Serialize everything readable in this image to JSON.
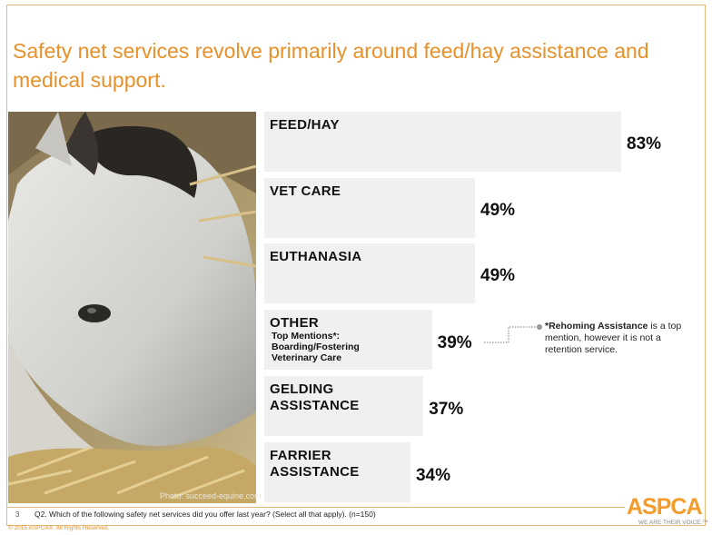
{
  "slide": {
    "title": "Safety net services revolve primarily around feed/hay assistance and medical support.",
    "photo_credit": "Photo: succeed-equine.com",
    "page_number": "3",
    "question": "Q2. Which of the following safety net services did you offer last year? (Select all that apply). (n=150)",
    "copyright": "© 2015 ASPCA®. All Rights Reserved.",
    "logo_text": "ASPCA",
    "logo_tagline": "WE ARE THEIR VOICE.™"
  },
  "colors": {
    "accent": "#e8912a",
    "bar": "#f0f0f0",
    "text": "#111111"
  },
  "chart_data": {
    "type": "bar",
    "orientation": "horizontal",
    "categories": [
      "FEED/HAY",
      "VET CARE",
      "EUTHANASIA",
      "OTHER",
      "GELDING ASSISTANCE",
      "FARRIER ASSISTANCE"
    ],
    "values": [
      83,
      49,
      49,
      39,
      37,
      34
    ],
    "value_labels": [
      "83%",
      "49%",
      "49%",
      "39%",
      "37%",
      "34%"
    ],
    "label_lines": [
      [
        "FEED/HAY"
      ],
      [
        "VET CARE"
      ],
      [
        "EUTHANASIA"
      ],
      [
        "OTHER"
      ],
      [
        "GELDING",
        "ASSISTANCE"
      ],
      [
        "FARRIER",
        "ASSISTANCE"
      ]
    ],
    "sublabels": [
      [],
      [],
      [],
      [
        "Top Mentions*:",
        "Boarding/Fostering",
        "Veterinary Care"
      ],
      [],
      []
    ],
    "annotation": {
      "bold": "*Rehoming Assistance",
      "text": " is a top mention, however it is not a retention service."
    }
  }
}
